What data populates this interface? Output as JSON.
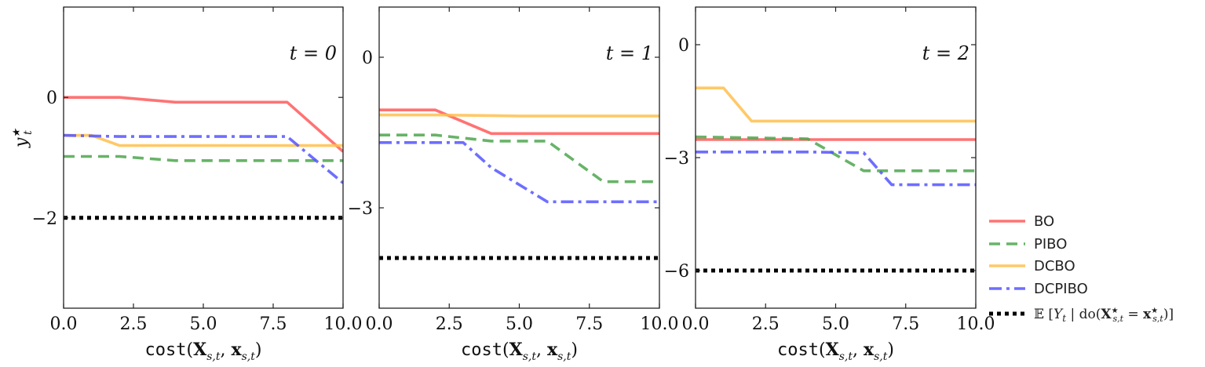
{
  "chart_data": [
    {
      "type": "line",
      "panel_label": "t = 0",
      "xlabel": "cost(X_{s,t}, x_{s,t})",
      "ylabel": "y*_t",
      "xlim": [
        0,
        10
      ],
      "ylim": [
        -3.5,
        1.5
      ],
      "xticks": [
        0,
        2.5,
        5,
        7.5,
        10
      ],
      "xtick_labels": [
        "0.0",
        "2.5",
        "5.0",
        "7.5",
        "10.0"
      ],
      "yticks": [
        0,
        -2
      ],
      "ytick_labels": [
        "0",
        "−2"
      ],
      "series": [
        {
          "name": "BO",
          "x": [
            0,
            2,
            4,
            8,
            10
          ],
          "y": [
            0.0,
            0.0,
            -0.08,
            -0.08,
            -0.9
          ]
        },
        {
          "name": "PIBO",
          "x": [
            0,
            2,
            4,
            10
          ],
          "y": [
            -0.98,
            -0.98,
            -1.05,
            -1.05
          ]
        },
        {
          "name": "DCBO",
          "x": [
            0,
            1,
            2,
            10
          ],
          "y": [
            -0.63,
            -0.63,
            -0.8,
            -0.8
          ]
        },
        {
          "name": "DCPIBO",
          "x": [
            0,
            2,
            8,
            10
          ],
          "y": [
            -0.63,
            -0.65,
            -0.65,
            -1.42
          ]
        },
        {
          "name": "E[Y_t | do(X*_{s,t} = x*_{s,t})]",
          "x": [
            0,
            10
          ],
          "y": [
            -2.0,
            -2.0
          ]
        }
      ]
    },
    {
      "type": "line",
      "panel_label": "t = 1",
      "xlabel": "cost(X_{s,t}, x_{s,t})",
      "ylabel": "",
      "xlim": [
        0,
        10
      ],
      "ylim": [
        -5.0,
        1.0
      ],
      "xticks": [
        0,
        2.5,
        5,
        7.5,
        10
      ],
      "xtick_labels": [
        "0.0",
        "2.5",
        "5.0",
        "7.5",
        "10.0"
      ],
      "yticks": [
        0,
        -3
      ],
      "ytick_labels": [
        "0",
        "−3"
      ],
      "series": [
        {
          "name": "BO",
          "x": [
            0,
            2,
            4,
            10
          ],
          "y": [
            -1.05,
            -1.05,
            -1.52,
            -1.52
          ]
        },
        {
          "name": "PIBO",
          "x": [
            0,
            2,
            4,
            6,
            8,
            10
          ],
          "y": [
            -1.55,
            -1.55,
            -1.67,
            -1.67,
            -2.48,
            -2.48
          ]
        },
        {
          "name": "DCBO",
          "x": [
            0,
            2,
            5,
            10
          ],
          "y": [
            -1.15,
            -1.15,
            -1.17,
            -1.17
          ]
        },
        {
          "name": "DCPIBO",
          "x": [
            0,
            3,
            4,
            6,
            10
          ],
          "y": [
            -1.7,
            -1.7,
            -2.2,
            -2.88,
            -2.88
          ]
        },
        {
          "name": "E[Y_t | do(X*_{s,t} = x*_{s,t})]",
          "x": [
            0,
            10
          ],
          "y": [
            -4.0,
            -4.0
          ]
        }
      ]
    },
    {
      "type": "line",
      "panel_label": "t = 2",
      "xlabel": "cost(X_{s,t}, x_{s,t})",
      "ylabel": "",
      "xlim": [
        0,
        10
      ],
      "ylim": [
        -7.0,
        1.0
      ],
      "xticks": [
        0,
        2.5,
        5,
        7.5,
        10
      ],
      "xtick_labels": [
        "0.0",
        "2.5",
        "5.0",
        "7.5",
        "10.0"
      ],
      "yticks": [
        0,
        -3,
        -6
      ],
      "ytick_labels": [
        "0",
        "−3",
        "−6"
      ],
      "series": [
        {
          "name": "BO",
          "x": [
            0,
            10
          ],
          "y": [
            -2.52,
            -2.52
          ]
        },
        {
          "name": "PIBO",
          "x": [
            0,
            4,
            6,
            10
          ],
          "y": [
            -2.45,
            -2.5,
            -3.35,
            -3.35
          ]
        },
        {
          "name": "DCBO",
          "x": [
            0,
            1,
            2,
            10
          ],
          "y": [
            -1.15,
            -1.15,
            -2.03,
            -2.03
          ]
        },
        {
          "name": "DCPIBO",
          "x": [
            0,
            4,
            6,
            7,
            10
          ],
          "y": [
            -2.85,
            -2.85,
            -2.87,
            -3.72,
            -3.72
          ]
        },
        {
          "name": "E[Y_t | do(X*_{s,t} = x*_{s,t})]",
          "x": [
            0,
            10
          ],
          "y": [
            -6.0,
            -6.0
          ]
        }
      ]
    }
  ],
  "legend": {
    "placement": "outside-right-bottom",
    "entries": [
      {
        "label": "BO",
        "color": "#ff5a5a",
        "style": "solid"
      },
      {
        "label": "PIBO",
        "color": "#4da64d",
        "style": "dashed"
      },
      {
        "label": "DCBO",
        "color": "#ffbf4d",
        "style": "solid"
      },
      {
        "label": "DCPIBO",
        "color": "#5555ff",
        "style": "dashdot"
      },
      {
        "label": "𝔼 [Y_t | do(X*_{s,t} = x*_{s,t})]",
        "color": "#000000",
        "style": "dotted"
      }
    ]
  },
  "colors": {
    "BO": "#ff5a5a",
    "PIBO": "#4da64d",
    "DCBO": "#ffbf4d",
    "DCPIBO": "#5555ff",
    "expectation": "#000000"
  }
}
